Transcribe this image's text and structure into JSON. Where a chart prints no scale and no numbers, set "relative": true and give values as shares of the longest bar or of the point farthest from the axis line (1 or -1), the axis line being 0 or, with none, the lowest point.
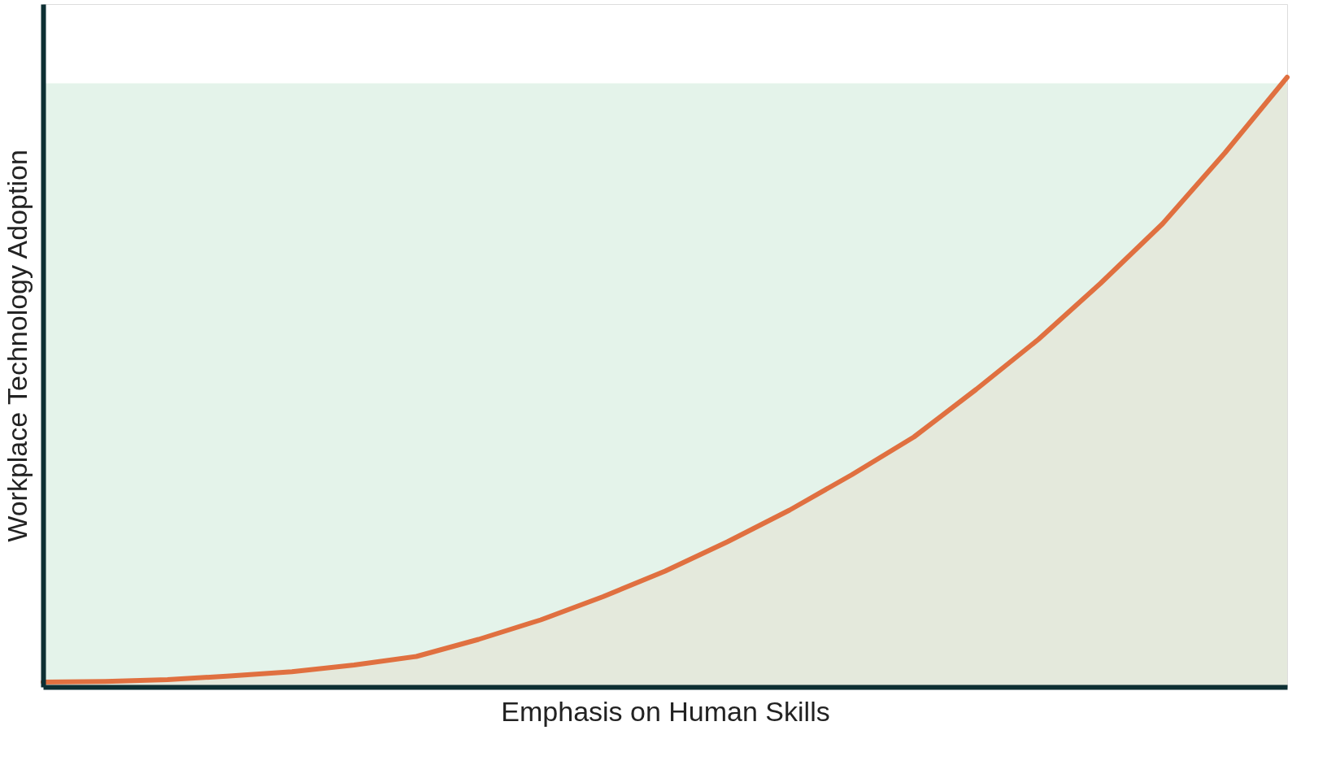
{
  "chart_data": {
    "type": "area",
    "relative": true,
    "xlabel": "Emphasis on Human Skills",
    "ylabel": "Workplace Technology Adoption",
    "categories": [
      null,
      null,
      null,
      null,
      null,
      null,
      null,
      null,
      null,
      null,
      null,
      null,
      null,
      null,
      null,
      null,
      null,
      null,
      null,
      null,
      null
    ],
    "series": [
      {
        "color": "#e07040",
        "values": [
          0.008,
          0.009,
          0.012,
          0.018,
          0.025,
          0.036,
          0.05,
          0.078,
          0.11,
          0.148,
          0.19,
          0.238,
          0.29,
          0.348,
          0.41,
          0.488,
          0.57,
          0.662,
          0.76,
          0.876,
          1.0
        ]
      }
    ],
    "bands": [
      {
        "axis": "y",
        "from": 0,
        "to": 0.99,
        "color": "#e4f3ea"
      }
    ],
    "grid": false
  }
}
